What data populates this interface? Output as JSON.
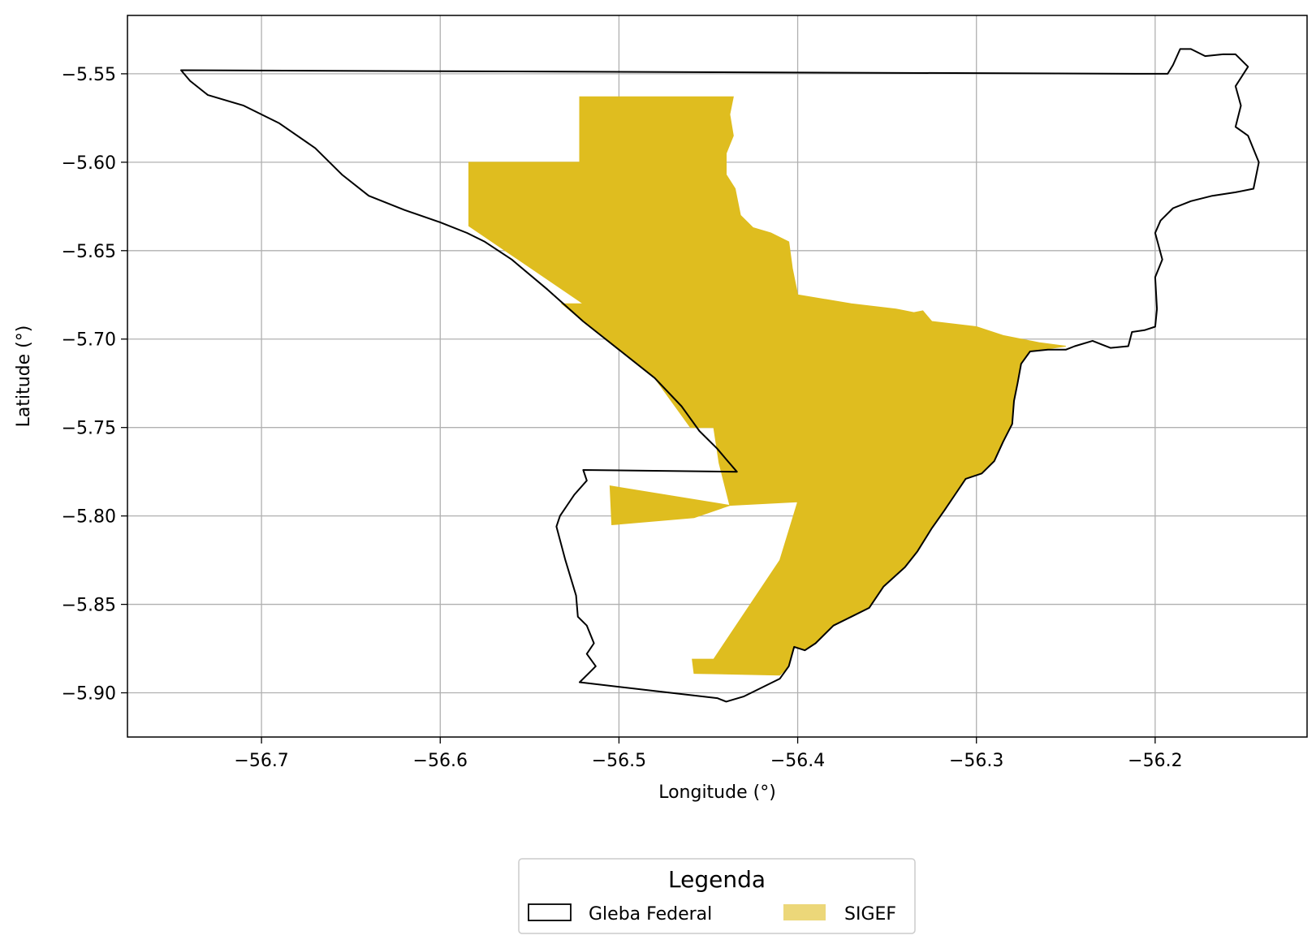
{
  "chart_data": {
    "type": "map",
    "xlabel": "Longitude (°)",
    "ylabel": "Latitude (°)",
    "xlim": [
      -56.775,
      -56.115
    ],
    "ylim": [
      -5.925,
      -5.517
    ],
    "xticks": [
      -56.7,
      -56.6,
      -56.5,
      -56.4,
      -56.3,
      -56.2
    ],
    "xtick_labels": [
      "−56.7",
      "−56.6",
      "−56.5",
      "−56.4",
      "−56.3",
      "−56.2"
    ],
    "yticks": [
      -5.55,
      -5.6,
      -5.65,
      -5.7,
      -5.75,
      -5.8,
      -5.85,
      -5.9
    ],
    "ytick_labels": [
      "−5.55",
      "−5.60",
      "−5.65",
      "−5.70",
      "−5.75",
      "−5.80",
      "−5.85",
      "−5.90"
    ],
    "grid": true,
    "legend": {
      "title": "Legenda",
      "placement": "bottom-center",
      "entries": [
        {
          "label": "Gleba Federal",
          "style": "outline",
          "color": "#000000"
        },
        {
          "label": "SIGEF",
          "style": "fill",
          "color": "#dfbd1f"
        }
      ]
    },
    "layers": [
      {
        "name": "Gleba Federal",
        "style": "outline",
        "stroke": "#000000",
        "rings": [
          [
            [
              -56.745,
              -5.548
            ],
            [
              -56.74,
              -5.554
            ],
            [
              -56.73,
              -5.562
            ],
            [
              -56.71,
              -5.568
            ],
            [
              -56.69,
              -5.578
            ],
            [
              -56.67,
              -5.592
            ],
            [
              -56.655,
              -5.607
            ],
            [
              -56.64,
              -5.619
            ],
            [
              -56.62,
              -5.627
            ],
            [
              -56.6,
              -5.634
            ],
            [
              -56.585,
              -5.64
            ],
            [
              -56.575,
              -5.645
            ],
            [
              -56.56,
              -5.655
            ],
            [
              -56.54,
              -5.672
            ],
            [
              -56.52,
              -5.69
            ],
            [
              -56.5,
              -5.706
            ],
            [
              -56.48,
              -5.722
            ],
            [
              -56.465,
              -5.738
            ],
            [
              -56.455,
              -5.752
            ],
            [
              -56.445,
              -5.762
            ],
            [
              -56.44,
              -5.768
            ],
            [
              -56.434,
              -5.775
            ],
            [
              -56.52,
              -5.774
            ],
            [
              -56.518,
              -5.78
            ],
            [
              -56.525,
              -5.788
            ],
            [
              -56.533,
              -5.8
            ],
            [
              -56.535,
              -5.806
            ],
            [
              -56.53,
              -5.825
            ],
            [
              -56.524,
              -5.845
            ],
            [
              -56.523,
              -5.857
            ],
            [
              -56.518,
              -5.862
            ],
            [
              -56.514,
              -5.872
            ],
            [
              -56.518,
              -5.878
            ],
            [
              -56.513,
              -5.885
            ],
            [
              -56.516,
              -5.888
            ],
            [
              -56.522,
              -5.894
            ],
            [
              -56.48,
              -5.899
            ],
            [
              -56.445,
              -5.903
            ],
            [
              -56.44,
              -5.905
            ],
            [
              -56.43,
              -5.902
            ],
            [
              -56.41,
              -5.892
            ],
            [
              -56.405,
              -5.885
            ],
            [
              -56.402,
              -5.874
            ],
            [
              -56.396,
              -5.876
            ],
            [
              -56.39,
              -5.872
            ],
            [
              -56.38,
              -5.862
            ],
            [
              -56.37,
              -5.857
            ],
            [
              -56.36,
              -5.852
            ],
            [
              -56.352,
              -5.84
            ],
            [
              -56.34,
              -5.829
            ],
            [
              -56.333,
              -5.82
            ],
            [
              -56.325,
              -5.807
            ],
            [
              -56.318,
              -5.797
            ],
            [
              -56.312,
              -5.788
            ],
            [
              -56.306,
              -5.779
            ],
            [
              -56.297,
              -5.776
            ],
            [
              -56.29,
              -5.769
            ],
            [
              -56.285,
              -5.758
            ],
            [
              -56.28,
              -5.748
            ],
            [
              -56.279,
              -5.735
            ],
            [
              -56.277,
              -5.725
            ],
            [
              -56.275,
              -5.714
            ],
            [
              -56.27,
              -5.707
            ],
            [
              -56.26,
              -5.706
            ],
            [
              -56.25,
              -5.706
            ],
            [
              -56.245,
              -5.704
            ],
            [
              -56.235,
              -5.701
            ],
            [
              -56.23,
              -5.703
            ],
            [
              -56.225,
              -5.705
            ],
            [
              -56.215,
              -5.704
            ],
            [
              -56.213,
              -5.696
            ],
            [
              -56.206,
              -5.695
            ],
            [
              -56.2,
              -5.693
            ],
            [
              -56.199,
              -5.683
            ],
            [
              -56.2,
              -5.665
            ],
            [
              -56.196,
              -5.655
            ],
            [
              -56.2,
              -5.64
            ],
            [
              -56.197,
              -5.633
            ],
            [
              -56.19,
              -5.626
            ],
            [
              -56.18,
              -5.622
            ],
            [
              -56.168,
              -5.619
            ],
            [
              -56.155,
              -5.617
            ],
            [
              -56.145,
              -5.615
            ],
            [
              -56.142,
              -5.6
            ],
            [
              -56.148,
              -5.585
            ],
            [
              -56.155,
              -5.58
            ],
            [
              -56.152,
              -5.568
            ],
            [
              -56.155,
              -5.557
            ],
            [
              -56.148,
              -5.546
            ],
            [
              -56.155,
              -5.539
            ],
            [
              -56.162,
              -5.539
            ],
            [
              -56.172,
              -5.54
            ],
            [
              -56.18,
              -5.536
            ],
            [
              -56.186,
              -5.536
            ],
            [
              -56.19,
              -5.545
            ],
            [
              -56.193,
              -5.55
            ],
            [
              -56.21,
              -5.55
            ],
            [
              -56.745,
              -5.548
            ]
          ]
        ]
      },
      {
        "name": "SIGEF",
        "style": "fill",
        "fill": "#dfbd1f",
        "rings": [
          [
            [
              -56.522,
              -5.563
            ],
            [
              -56.436,
              -5.563
            ],
            [
              -56.438,
              -5.573
            ],
            [
              -56.436,
              -5.585
            ],
            [
              -56.44,
              -5.595
            ],
            [
              -56.44,
              -5.607
            ],
            [
              -56.435,
              -5.615
            ],
            [
              -56.432,
              -5.63
            ],
            [
              -56.425,
              -5.637
            ],
            [
              -56.415,
              -5.64
            ],
            [
              -56.405,
              -5.645
            ],
            [
              -56.403,
              -5.66
            ],
            [
              -56.4,
              -5.675
            ],
            [
              -56.37,
              -5.68
            ],
            [
              -56.345,
              -5.683
            ],
            [
              -56.335,
              -5.685
            ],
            [
              -56.33,
              -5.684
            ],
            [
              -56.325,
              -5.69
            ],
            [
              -56.3,
              -5.693
            ],
            [
              -56.285,
              -5.698
            ],
            [
              -56.265,
              -5.702
            ],
            [
              -56.25,
              -5.704
            ],
            [
              -56.27,
              -5.707
            ],
            [
              -56.275,
              -5.714
            ],
            [
              -56.277,
              -5.725
            ],
            [
              -56.279,
              -5.735
            ],
            [
              -56.28,
              -5.748
            ],
            [
              -56.285,
              -5.758
            ],
            [
              -56.29,
              -5.769
            ],
            [
              -56.297,
              -5.776
            ],
            [
              -56.306,
              -5.779
            ],
            [
              -56.312,
              -5.788
            ],
            [
              -56.318,
              -5.797
            ],
            [
              -56.325,
              -5.807
            ],
            [
              -56.333,
              -5.82
            ],
            [
              -56.34,
              -5.829
            ],
            [
              -56.352,
              -5.84
            ],
            [
              -56.36,
              -5.852
            ],
            [
              -56.37,
              -5.857
            ],
            [
              -56.38,
              -5.862
            ],
            [
              -56.39,
              -5.872
            ],
            [
              -56.396,
              -5.876
            ],
            [
              -56.402,
              -5.874
            ],
            [
              -56.405,
              -5.885
            ],
            [
              -56.41,
              -5.89
            ],
            [
              -56.458,
              -5.889
            ],
            [
              -56.459,
              -5.881
            ],
            [
              -56.447,
              -5.881
            ],
            [
              -56.41,
              -5.825
            ],
            [
              -56.4,
              -5.792
            ],
            [
              -56.438,
              -5.794
            ],
            [
              -56.444,
              -5.77
            ],
            [
              -56.447,
              -5.75
            ],
            [
              -56.46,
              -5.75
            ],
            [
              -56.48,
              -5.722
            ],
            [
              -56.5,
              -5.706
            ],
            [
              -56.52,
              -5.69
            ],
            [
              -56.532,
              -5.68
            ],
            [
              -56.52,
              -5.68
            ],
            [
              -56.584,
              -5.636
            ],
            [
              -56.584,
              -5.6
            ],
            [
              -56.522,
              -5.6
            ],
            [
              -56.522,
              -5.563
            ]
          ],
          [
            [
              -56.505,
              -5.783
            ],
            [
              -56.438,
              -5.794
            ],
            [
              -56.458,
              -5.801
            ],
            [
              -56.504,
              -5.805
            ],
            [
              -56.505,
              -5.783
            ]
          ]
        ]
      }
    ]
  }
}
